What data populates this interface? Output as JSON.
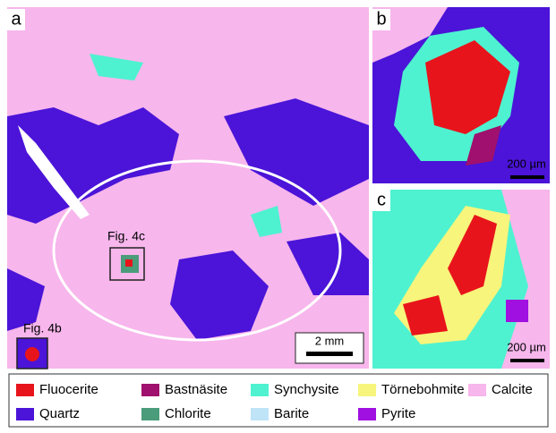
{
  "panels": [
    {
      "label": "a",
      "annotations": [
        "Fig. 4c",
        "Fig. 4b"
      ],
      "scale_bar": "2 mm"
    },
    {
      "label": "b",
      "scale_bar": "200 µm"
    },
    {
      "label": "c",
      "scale_bar": "200 µm"
    }
  ],
  "legend": [
    {
      "name": "Fluocerite",
      "color": "#e8141b"
    },
    {
      "name": "Bastnäsite",
      "color": "#a0106e"
    },
    {
      "name": "Synchysite",
      "color": "#4ef2d0"
    },
    {
      "name": "Törnebohmite",
      "color": "#f7f57c"
    },
    {
      "name": "Calcite",
      "color": "#f7b6ec"
    },
    {
      "name": "Quartz",
      "color": "#4b14d8"
    },
    {
      "name": "Chlorite",
      "color": "#4a9c7a"
    },
    {
      "name": "Barite",
      "color": "#bfe3f7"
    },
    {
      "name": "Pyrite",
      "color": "#a010e0"
    }
  ]
}
